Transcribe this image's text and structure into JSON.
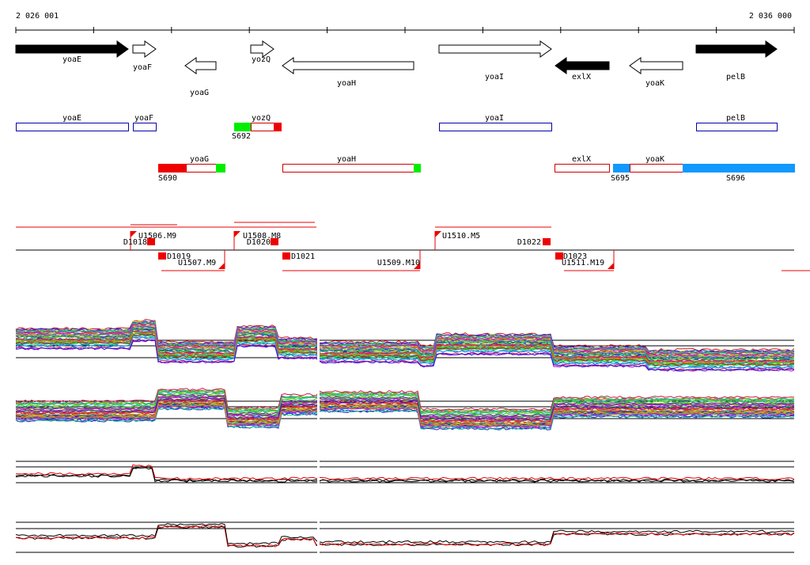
{
  "ruler": {
    "start": "2 026 001",
    "end": "2 036 000"
  },
  "genes": [
    "yoaE",
    "yoaF",
    "yoaG",
    "yozQ",
    "yoaH",
    "yoaI",
    "exlX",
    "yoaK",
    "pelB"
  ],
  "segment_genes": [
    "yoaE",
    "yoaF",
    "yozQ",
    "yoaI",
    "pelB",
    "yoaG",
    "yoaH",
    "exlX",
    "yoaK"
  ],
  "segments": [
    "S692",
    "S690",
    "S695",
    "S696"
  ],
  "boundaries": [
    "U1506.M9",
    "D1018",
    "U1508.M8",
    "D1020",
    "U1510.M5",
    "D1022",
    "D1019",
    "U1507.M9",
    "D1021",
    "U1509.M10",
    "D1023",
    "U1511.M19"
  ]
}
